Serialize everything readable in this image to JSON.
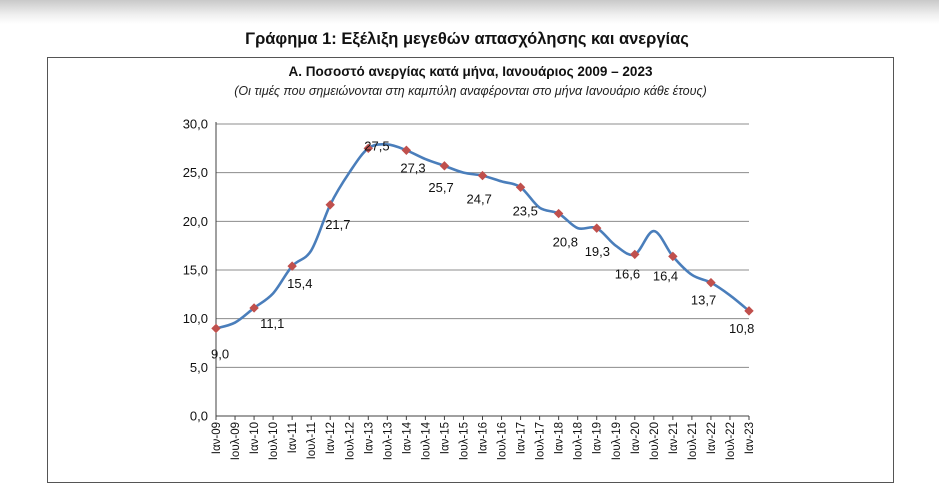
{
  "page": {
    "main_title": "Γράφημα 1: Εξέλιξη μεγεθών απασχόλησης και ανεργίας"
  },
  "colors": {
    "line": "#4a7ebb",
    "marker": "#c0504d",
    "grid": "#8c8c8c",
    "axis": "#404040"
  },
  "chart_data": {
    "type": "line",
    "title": "Α. Ποσοστό ανεργίας κατά μήνα, Ιανουάριος 2009 – 2023",
    "subtitle": "(Οι τιμές που σημειώνονται στη καμπύλη αναφέρονται στο μήνα Ιανουάριο κάθε έτους)",
    "xlabel": "",
    "ylabel": "",
    "ylim": [
      0,
      30
    ],
    "yticks": [
      "0,0",
      "5,0",
      "10,0",
      "15,0",
      "20,0",
      "25,0",
      "30,0"
    ],
    "grid": true,
    "legend": "none",
    "x_tick_labels": [
      "Ιαν-09",
      "Ιουλ-09",
      "Ιαν-10",
      "Ιουλ-10",
      "Ιαν-11",
      "Ιουλ-11",
      "Ιαν-12",
      "Ιουλ-12",
      "Ιαν-13",
      "Ιουλ-13",
      "Ιαν-14",
      "Ιουλ-14",
      "Ιαν-15",
      "Ιουλ-15",
      "Ιαν-16",
      "Ιουλ-16",
      "Ιαν-17",
      "Ιουλ-17",
      "Ιαν-18",
      "Ιουλ-18",
      "Ιαν-19",
      "Ιουλ-19",
      "Ιαν-20",
      "Ιουλ-20",
      "Ιαν-21",
      "Ιουλ-21",
      "Ιαν-22",
      "Ιουλ-22",
      "Ιαν-23"
    ],
    "series": [
      {
        "values": [
          9.0,
          9.6,
          11.1,
          12.6,
          15.4,
          17.0,
          21.7,
          25.0,
          27.5,
          27.9,
          27.3,
          26.4,
          25.7,
          25.0,
          24.7,
          24.1,
          23.5,
          21.4,
          20.8,
          19.3,
          19.3,
          17.5,
          16.6,
          19.0,
          16.4,
          14.5,
          13.7,
          12.4,
          10.8
        ]
      }
    ],
    "january_labels": [
      {
        "x": "Ιαν-09",
        "value": 9.0,
        "label": "9,0"
      },
      {
        "x": "Ιαν-10",
        "value": 11.1,
        "label": "11,1"
      },
      {
        "x": "Ιαν-11",
        "value": 15.4,
        "label": "15,4"
      },
      {
        "x": "Ιαν-12",
        "value": 21.7,
        "label": "21,7"
      },
      {
        "x": "Ιαν-13",
        "value": 27.5,
        "label": "27,5"
      },
      {
        "x": "Ιαν-14",
        "value": 27.3,
        "label": "27,3"
      },
      {
        "x": "Ιαν-15",
        "value": 25.7,
        "label": "25,7"
      },
      {
        "x": "Ιαν-16",
        "value": 24.7,
        "label": "24,7"
      },
      {
        "x": "Ιαν-17",
        "value": 23.5,
        "label": "23,5"
      },
      {
        "x": "Ιαν-18",
        "value": 20.8,
        "label": "20,8"
      },
      {
        "x": "Ιαν-19",
        "value": 19.3,
        "label": "19,3"
      },
      {
        "x": "Ιαν-20",
        "value": 16.6,
        "label": "16,6"
      },
      {
        "x": "Ιαν-21",
        "value": 16.4,
        "label": "16,4"
      },
      {
        "x": "Ιαν-22",
        "value": 13.7,
        "label": "13,7"
      },
      {
        "x": "Ιαν-23",
        "value": 10.8,
        "label": "10,8"
      }
    ]
  }
}
